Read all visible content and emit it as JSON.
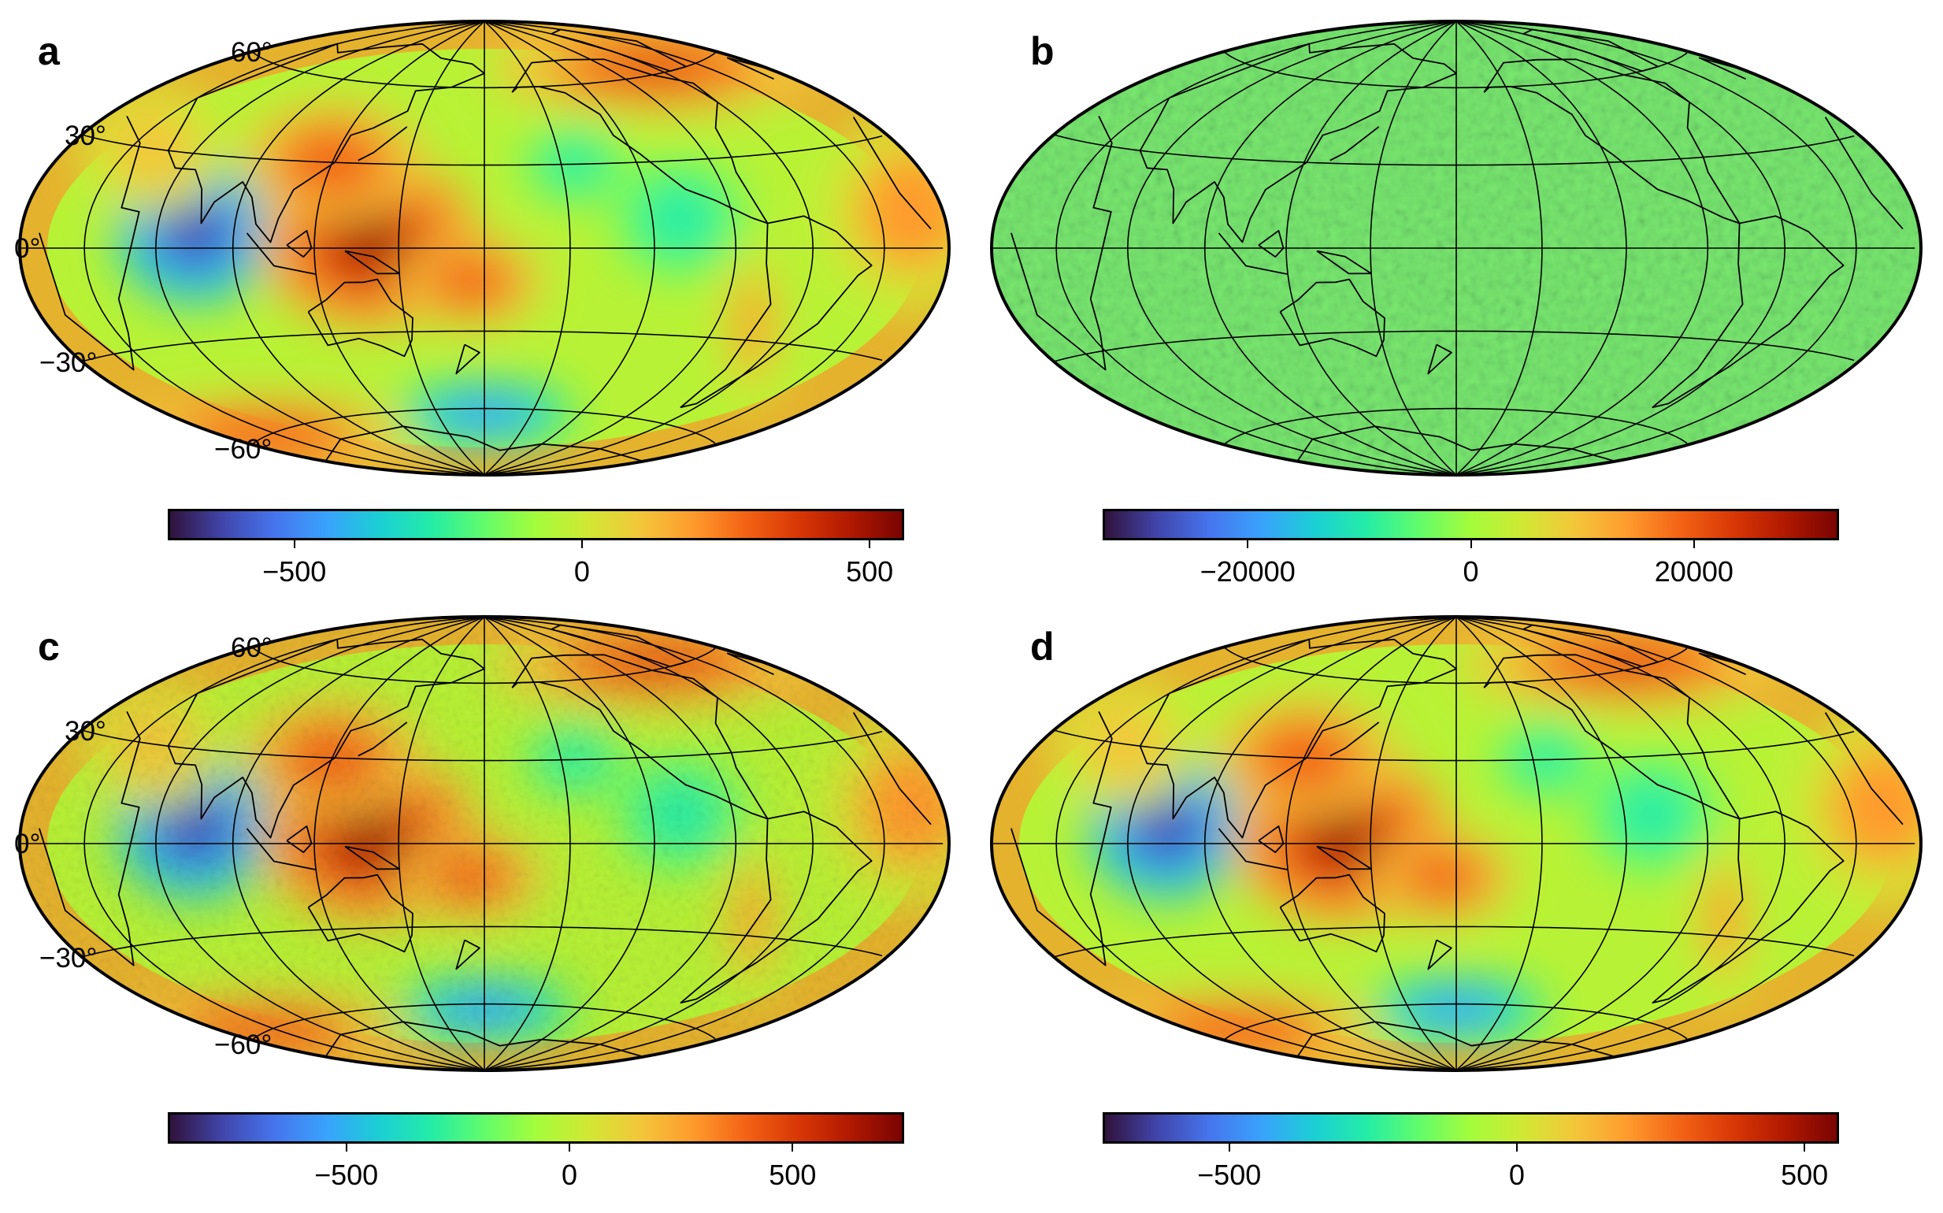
{
  "figure": {
    "panels": [
      {
        "id": "a",
        "label": "a",
        "field_type": "smooth",
        "lat_labels": [
          "60°",
          "30°",
          "0°",
          "−30°",
          "−60°"
        ],
        "colorbar": {
          "min": -720,
          "max": 560,
          "ticks": [
            -500,
            0,
            500
          ],
          "tick_labels": [
            "−500",
            "0",
            "500"
          ]
        }
      },
      {
        "id": "b",
        "label": "b",
        "field_type": "noise",
        "lat_labels": [],
        "colorbar": {
          "min": -33000,
          "max": 33000,
          "ticks": [
            -20000,
            0,
            20000
          ],
          "tick_labels": [
            "−20000",
            "0",
            "20000"
          ]
        }
      },
      {
        "id": "c",
        "label": "c",
        "field_type": "smooth_noisy",
        "lat_labels": [
          "60°",
          "30°",
          "0°",
          "−30°",
          "−60°"
        ],
        "colorbar": {
          "min": -900,
          "max": 750,
          "ticks": [
            -500,
            0,
            500
          ],
          "tick_labels": [
            "−500",
            "0",
            "500"
          ]
        }
      },
      {
        "id": "d",
        "label": "d",
        "field_type": "smooth",
        "lat_labels": [],
        "colorbar": {
          "min": -720,
          "max": 560,
          "ticks": [
            -500,
            0,
            500
          ],
          "tick_labels": [
            "−500",
            "0",
            "500"
          ]
        }
      }
    ],
    "projection": "Hammer-Aitoff, centred on 180° longitude",
    "graticule": {
      "meridian_step_deg": 30,
      "parallel_step_deg": 30
    },
    "colormap": {
      "name": "turbo",
      "stops": [
        "#30123b",
        "#4145ab",
        "#4675ed",
        "#39a2fc",
        "#1bcfd4",
        "#24eca6",
        "#61fc6c",
        "#a4fc3b",
        "#d1e834",
        "#f3c63a",
        "#fe9b2d",
        "#f36315",
        "#d93806",
        "#b11901",
        "#7a0402"
      ]
    },
    "colors": {
      "coastline": "#000000",
      "graticule": "#000000",
      "frame": "#000000",
      "background": "#ffffff"
    }
  }
}
